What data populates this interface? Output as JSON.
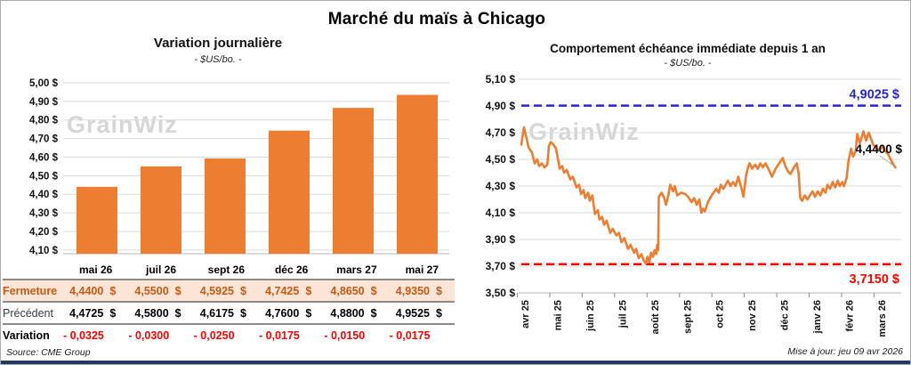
{
  "header": {
    "title": "Marché du maïs à Chicago"
  },
  "watermark": "GrainWiz",
  "footer": {
    "source": "Source: CME Group",
    "updated": "Mise à jour: jeu 09 avr 2026"
  },
  "colors": {
    "orange": "#ED7D31",
    "blue": "#2626C9",
    "red": "#FF0000",
    "brown": "#C55A11",
    "peach": "#FCE4D6",
    "grid": "#DADADA",
    "axis": "#B5B5B5",
    "navy": "#1F3864",
    "watermark": "#D6D6D6",
    "leader": "#ABABAB"
  },
  "chart_data": [
    {
      "id": "daily_variation",
      "type": "bar",
      "title": "Variation journalière",
      "subtitle": "- $US/bo. -",
      "categories": [
        "mai 26",
        "juil 26",
        "sept 26",
        "déc 26",
        "mars 27",
        "mai 27"
      ],
      "values": [
        4.44,
        4.55,
        4.5925,
        4.7425,
        4.865,
        4.935
      ],
      "ylim": [
        4.08,
        5.0
      ],
      "yticks": [
        4.1,
        4.2,
        4.3,
        4.4,
        4.5,
        4.6,
        4.7,
        4.8,
        4.9,
        5.0
      ],
      "ylabel_suffix": " $",
      "grid": true,
      "legend": "none"
    },
    {
      "id": "front_month",
      "type": "line",
      "title": "Comportement échéance immédiate depuis 1 an",
      "subtitle": "- $US/bo. -",
      "categories": [
        "avr 25",
        "mai 25",
        "juin 25",
        "juil 25",
        "août 25",
        "sept 25",
        "oct 25",
        "nov 25",
        "déc 25",
        "janv 26",
        "févr 26",
        "mars 26"
      ],
      "ylim": [
        3.5,
        5.1
      ],
      "yticks": [
        3.5,
        3.7,
        3.9,
        4.1,
        4.3,
        4.5,
        4.7,
        4.9,
        5.1
      ],
      "ylabel_suffix": " $",
      "grid": true,
      "legend": "none",
      "ref_lines": [
        {
          "name": "max-reference-line",
          "value": 4.9025,
          "label": "4,9025 $",
          "color": "#2626C9",
          "label_side": "above"
        },
        {
          "name": "min-reference-line",
          "value": 3.715,
          "label": "3,7150 $",
          "color": "#FF0000",
          "label_side": "below"
        }
      ],
      "annotation": {
        "label": "4,4400 $",
        "value": 4.44
      },
      "series": [
        {
          "name": "échéance immédiate",
          "points": [
            [
              -0.11,
              4.61
            ],
            [
              -0.03,
              4.74
            ],
            [
              0.05,
              4.66
            ],
            [
              0.11,
              4.59
            ],
            [
              0.22,
              4.55
            ],
            [
              0.3,
              4.47
            ],
            [
              0.38,
              4.5
            ],
            [
              0.44,
              4.45
            ],
            [
              0.52,
              4.47
            ],
            [
              0.6,
              4.44
            ],
            [
              0.69,
              4.46
            ],
            [
              0.74,
              4.6
            ],
            [
              0.8,
              4.63
            ],
            [
              0.88,
              4.61
            ],
            [
              0.96,
              4.58
            ],
            [
              1.02,
              4.5
            ],
            [
              1.07,
              4.43
            ],
            [
              1.15,
              4.45
            ],
            [
              1.21,
              4.4
            ],
            [
              1.29,
              4.42
            ],
            [
              1.4,
              4.35
            ],
            [
              1.48,
              4.37
            ],
            [
              1.59,
              4.29
            ],
            [
              1.67,
              4.31
            ],
            [
              1.73,
              4.24
            ],
            [
              1.81,
              4.27
            ],
            [
              1.86,
              4.21
            ],
            [
              1.95,
              4.25
            ],
            [
              2.0,
              4.19
            ],
            [
              2.08,
              4.23
            ],
            [
              2.16,
              4.09
            ],
            [
              2.25,
              4.12
            ],
            [
              2.3,
              4.05
            ],
            [
              2.38,
              4.07
            ],
            [
              2.44,
              4.01
            ],
            [
              2.52,
              4.04
            ],
            [
              2.63,
              3.95
            ],
            [
              2.71,
              3.98
            ],
            [
              2.82,
              3.93
            ],
            [
              2.9,
              3.95
            ],
            [
              2.98,
              3.88
            ],
            [
              3.07,
              3.91
            ],
            [
              3.18,
              3.83
            ],
            [
              3.26,
              3.86
            ],
            [
              3.37,
              3.8
            ],
            [
              3.43,
              3.83
            ],
            [
              3.51,
              3.76
            ],
            [
              3.59,
              3.79
            ],
            [
              3.67,
              3.74
            ],
            [
              3.73,
              3.72
            ],
            [
              3.78,
              3.77
            ],
            [
              3.84,
              3.73
            ],
            [
              3.89,
              3.8
            ],
            [
              3.95,
              3.77
            ],
            [
              4.0,
              3.82
            ],
            [
              4.05,
              3.79
            ],
            [
              4.08,
              3.86
            ],
            [
              4.11,
              3.82
            ],
            [
              4.13,
              4.22
            ],
            [
              4.21,
              4.25
            ],
            [
              4.3,
              4.21
            ],
            [
              4.35,
              4.16
            ],
            [
              4.43,
              4.24
            ],
            [
              4.48,
              4.31
            ],
            [
              4.57,
              4.26
            ],
            [
              4.62,
              4.3
            ],
            [
              4.7,
              4.23
            ],
            [
              4.81,
              4.25
            ],
            [
              4.95,
              4.24
            ],
            [
              5.03,
              4.22
            ],
            [
              5.14,
              4.18
            ],
            [
              5.22,
              4.21
            ],
            [
              5.3,
              4.16
            ],
            [
              5.38,
              4.2
            ],
            [
              5.44,
              4.1
            ],
            [
              5.49,
              4.13
            ],
            [
              5.55,
              4.11
            ],
            [
              5.63,
              4.17
            ],
            [
              5.71,
              4.21
            ],
            [
              5.79,
              4.24
            ],
            [
              5.9,
              4.28
            ],
            [
              5.98,
              4.25
            ],
            [
              6.04,
              4.31
            ],
            [
              6.12,
              4.28
            ],
            [
              6.26,
              4.34
            ],
            [
              6.34,
              4.3
            ],
            [
              6.42,
              4.33
            ],
            [
              6.5,
              4.3
            ],
            [
              6.58,
              4.37
            ],
            [
              6.66,
              4.3
            ],
            [
              6.74,
              4.22
            ],
            [
              6.82,
              4.38
            ],
            [
              6.88,
              4.44
            ],
            [
              6.93,
              4.47
            ],
            [
              7.01,
              4.43
            ],
            [
              7.1,
              4.46
            ],
            [
              7.18,
              4.43
            ],
            [
              7.26,
              4.47
            ],
            [
              7.34,
              4.44
            ],
            [
              7.42,
              4.47
            ],
            [
              7.51,
              4.43
            ],
            [
              7.62,
              4.37
            ],
            [
              7.73,
              4.43
            ],
            [
              7.84,
              4.47
            ],
            [
              7.95,
              4.51
            ],
            [
              8.03,
              4.45
            ],
            [
              8.11,
              4.41
            ],
            [
              8.19,
              4.39
            ],
            [
              8.3,
              4.44
            ],
            [
              8.38,
              4.47
            ],
            [
              8.44,
              4.4
            ],
            [
              8.49,
              4.21
            ],
            [
              8.55,
              4.19
            ],
            [
              8.63,
              4.23
            ],
            [
              8.71,
              4.2
            ],
            [
              8.79,
              4.23
            ],
            [
              8.87,
              4.26
            ],
            [
              8.95,
              4.22
            ],
            [
              9.03,
              4.26
            ],
            [
              9.11,
              4.23
            ],
            [
              9.19,
              4.28
            ],
            [
              9.27,
              4.25
            ],
            [
              9.33,
              4.31
            ],
            [
              9.41,
              4.28
            ],
            [
              9.49,
              4.33
            ],
            [
              9.57,
              4.29
            ],
            [
              9.65,
              4.34
            ],
            [
              9.71,
              4.3
            ],
            [
              9.79,
              4.33
            ],
            [
              9.84,
              4.3
            ],
            [
              9.92,
              4.36
            ],
            [
              9.98,
              4.49
            ],
            [
              10.06,
              4.58
            ],
            [
              10.12,
              4.52
            ],
            [
              10.2,
              4.56
            ],
            [
              10.25,
              4.69
            ],
            [
              10.33,
              4.62
            ],
            [
              10.44,
              4.71
            ],
            [
              10.52,
              4.64
            ],
            [
              10.6,
              4.7
            ],
            [
              10.68,
              4.65
            ],
            [
              10.74,
              4.61
            ],
            [
              10.85,
              4.58
            ],
            [
              10.93,
              4.57
            ],
            [
              11.01,
              4.6
            ],
            [
              11.12,
              4.56
            ],
            [
              11.2,
              4.54
            ],
            [
              11.26,
              4.51
            ],
            [
              11.34,
              4.47
            ],
            [
              11.42,
              4.44
            ]
          ]
        }
      ]
    }
  ],
  "table": {
    "col_headers": [
      "mai 26",
      "juil 26",
      "sept 26",
      "déc 26",
      "mars 27",
      "mai 27"
    ],
    "rows": [
      {
        "label": "Fermeture",
        "style": "fermeture",
        "suffix": "$",
        "values": [
          "4,4400",
          "4,5500",
          "4,5925",
          "4,7425",
          "4,8650",
          "4,9350"
        ]
      },
      {
        "label": "Précédent",
        "style": "precedent",
        "suffix": "$",
        "values": [
          "4,4725",
          "4,5800",
          "4,6175",
          "4,7600",
          "4,8800",
          "4,9525"
        ]
      },
      {
        "label": "Variation",
        "style": "variation",
        "suffix": "",
        "values": [
          "- 0,0325",
          "- 0,0300",
          "- 0,0250",
          "- 0,0175",
          "- 0,0150",
          "- 0,0175"
        ]
      }
    ]
  }
}
